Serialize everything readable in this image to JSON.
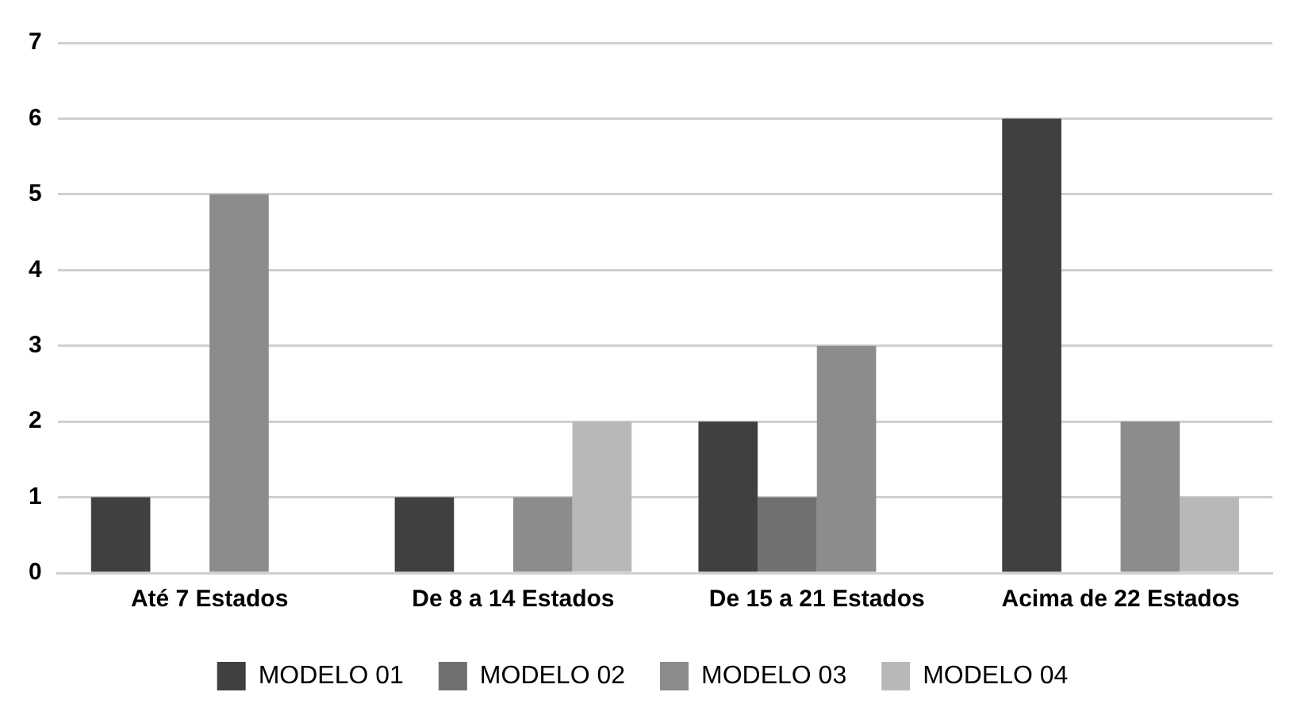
{
  "chart_data": {
    "type": "bar",
    "categories": [
      "Até 7 Estados",
      "De 8 a 14 Estados",
      "De 15 a 21 Estados",
      "Acima de 22 Estados"
    ],
    "series": [
      {
        "name": "MODELO 01",
        "color": "#404040",
        "values": [
          1,
          1,
          2,
          6
        ]
      },
      {
        "name": "MODELO 02",
        "color": "#707070",
        "values": [
          0,
          0,
          1,
          0
        ]
      },
      {
        "name": "MODELO 03",
        "color": "#8c8c8c",
        "values": [
          5,
          1,
          3,
          2
        ]
      },
      {
        "name": "MODELO 04",
        "color": "#b8b8b8",
        "values": [
          0,
          2,
          0,
          1
        ]
      }
    ],
    "ylim": [
      0,
      7
    ],
    "yticks": [
      0,
      1,
      2,
      3,
      4,
      5,
      6,
      7
    ],
    "grid": "y",
    "legend": "bottom"
  }
}
